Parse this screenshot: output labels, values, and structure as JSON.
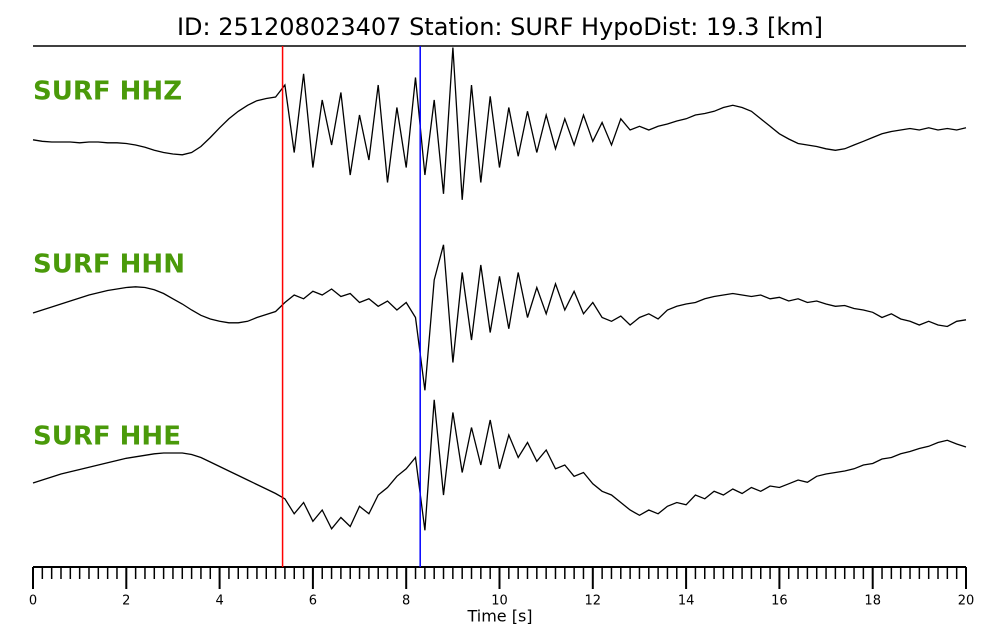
{
  "chart_data": {
    "type": "line",
    "title": "ID: 251208023407   Station: SURF   HypoDist:    19.3 [km]",
    "xlabel": "Time [s]",
    "xlim": [
      0,
      20
    ],
    "xticks": [
      0,
      2,
      4,
      6,
      8,
      10,
      12,
      14,
      16,
      18,
      20
    ],
    "xminor": 0.2,
    "ylim": [
      -1,
      1
    ],
    "label_color": "#4a9a0a",
    "markers": [
      {
        "x": 5.35,
        "color": "#ff0000"
      },
      {
        "x": 8.3,
        "color": "#0000ff"
      }
    ],
    "x": [
      0,
      0.2,
      0.4,
      0.6,
      0.8,
      1,
      1.2,
      1.4,
      1.6,
      1.8,
      2,
      2.2,
      2.4,
      2.6,
      2.8,
      3,
      3.2,
      3.4,
      3.6,
      3.8,
      4,
      4.2,
      4.4,
      4.6,
      4.8,
      5,
      5.2,
      5.4,
      5.6,
      5.8,
      6,
      6.2,
      6.4,
      6.6,
      6.8,
      7,
      7.2,
      7.4,
      7.6,
      7.8,
      8,
      8.2,
      8.4,
      8.6,
      8.8,
      9,
      9.2,
      9.4,
      9.6,
      9.8,
      10,
      10.2,
      10.4,
      10.6,
      10.8,
      11,
      11.2,
      11.4,
      11.6,
      11.8,
      12,
      12.2,
      12.4,
      12.6,
      12.8,
      13,
      13.2,
      13.4,
      13.6,
      13.8,
      14,
      14.2,
      14.4,
      14.6,
      14.8,
      15,
      15.2,
      15.4,
      15.6,
      15.8,
      16,
      16.2,
      16.4,
      16.6,
      16.8,
      17,
      17.2,
      17.4,
      17.6,
      17.8,
      18,
      18.2,
      18.4,
      18.6,
      18.8,
      19,
      19.2,
      19.4,
      19.6,
      19.8,
      20
    ],
    "series": [
      {
        "name": "SURF HHZ",
        "color": "#000000",
        "values": [
          -0.13,
          -0.15,
          -0.16,
          -0.16,
          -0.16,
          -0.17,
          -0.16,
          -0.16,
          -0.17,
          -0.17,
          -0.18,
          -0.2,
          -0.23,
          -0.27,
          -0.3,
          -0.32,
          -0.33,
          -0.3,
          -0.22,
          -0.1,
          0.03,
          0.15,
          0.25,
          0.33,
          0.39,
          0.42,
          0.44,
          0.6,
          -0.3,
          0.75,
          -0.5,
          0.4,
          -0.2,
          0.5,
          -0.6,
          0.2,
          -0.4,
          0.6,
          -0.7,
          0.3,
          -0.5,
          0.7,
          -0.6,
          0.4,
          -0.85,
          1.1,
          -0.93,
          0.6,
          -0.7,
          0.45,
          -0.5,
          0.3,
          -0.35,
          0.25,
          -0.3,
          0.2,
          -0.25,
          0.15,
          -0.2,
          0.2,
          -0.15,
          0.1,
          -0.2,
          0.15,
          0.0,
          0.05,
          0.0,
          0.05,
          0.08,
          0.12,
          0.15,
          0.2,
          0.22,
          0.25,
          0.3,
          0.33,
          0.3,
          0.25,
          0.15,
          0.05,
          -0.05,
          -0.12,
          -0.18,
          -0.2,
          -0.22,
          -0.25,
          -0.27,
          -0.25,
          -0.2,
          -0.15,
          -0.1,
          -0.05,
          -0.02,
          0.0,
          0.02,
          0.0,
          0.03,
          0.0,
          0.02,
          0.0,
          0.03
        ]
      },
      {
        "name": "SURF HHN",
        "color": "#000000",
        "values": [
          -0.04,
          0.0,
          0.04,
          0.08,
          0.12,
          0.16,
          0.2,
          0.23,
          0.26,
          0.28,
          0.3,
          0.31,
          0.3,
          0.27,
          0.22,
          0.15,
          0.08,
          0.0,
          -0.07,
          -0.12,
          -0.15,
          -0.17,
          -0.17,
          -0.15,
          -0.1,
          -0.06,
          -0.02,
          0.1,
          0.2,
          0.15,
          0.25,
          0.2,
          0.28,
          0.18,
          0.22,
          0.1,
          0.15,
          0.05,
          0.12,
          0.0,
          0.1,
          -0.1,
          -1.07,
          0.4,
          0.87,
          -0.7,
          0.5,
          -0.4,
          0.6,
          -0.3,
          0.45,
          -0.25,
          0.5,
          -0.1,
          0.3,
          -0.05,
          0.35,
          0.0,
          0.25,
          -0.05,
          0.1,
          -0.1,
          -0.15,
          -0.08,
          -0.2,
          -0.1,
          -0.05,
          -0.12,
          0.0,
          0.05,
          0.08,
          0.1,
          0.15,
          0.18,
          0.2,
          0.22,
          0.2,
          0.18,
          0.2,
          0.15,
          0.17,
          0.12,
          0.15,
          0.1,
          0.12,
          0.08,
          0.05,
          0.06,
          0.02,
          0.0,
          -0.03,
          -0.1,
          -0.05,
          -0.12,
          -0.15,
          -0.2,
          -0.15,
          -0.2,
          -0.22,
          -0.15,
          -0.13
        ]
      },
      {
        "name": "SURF HHE",
        "color": "#000000",
        "values": [
          -0.04,
          0.0,
          0.04,
          0.08,
          0.11,
          0.14,
          0.17,
          0.2,
          0.23,
          0.26,
          0.29,
          0.31,
          0.33,
          0.35,
          0.36,
          0.36,
          0.36,
          0.34,
          0.3,
          0.24,
          0.18,
          0.12,
          0.06,
          0.0,
          -0.06,
          -0.12,
          -0.18,
          -0.25,
          -0.45,
          -0.3,
          -0.55,
          -0.4,
          -0.65,
          -0.5,
          -0.62,
          -0.35,
          -0.45,
          -0.2,
          -0.1,
          0.05,
          0.15,
          0.3,
          -0.67,
          1.07,
          -0.2,
          0.9,
          0.1,
          0.7,
          0.2,
          0.8,
          0.15,
          0.6,
          0.3,
          0.5,
          0.25,
          0.4,
          0.15,
          0.2,
          0.05,
          0.1,
          -0.05,
          -0.15,
          -0.2,
          -0.3,
          -0.4,
          -0.47,
          -0.4,
          -0.45,
          -0.35,
          -0.3,
          -0.33,
          -0.2,
          -0.25,
          -0.15,
          -0.2,
          -0.12,
          -0.18,
          -0.1,
          -0.15,
          -0.08,
          -0.1,
          -0.05,
          0.0,
          -0.03,
          0.05,
          0.08,
          0.1,
          0.12,
          0.15,
          0.2,
          0.22,
          0.28,
          0.3,
          0.35,
          0.38,
          0.42,
          0.45,
          0.5,
          0.53,
          0.48,
          0.44
        ]
      }
    ]
  }
}
